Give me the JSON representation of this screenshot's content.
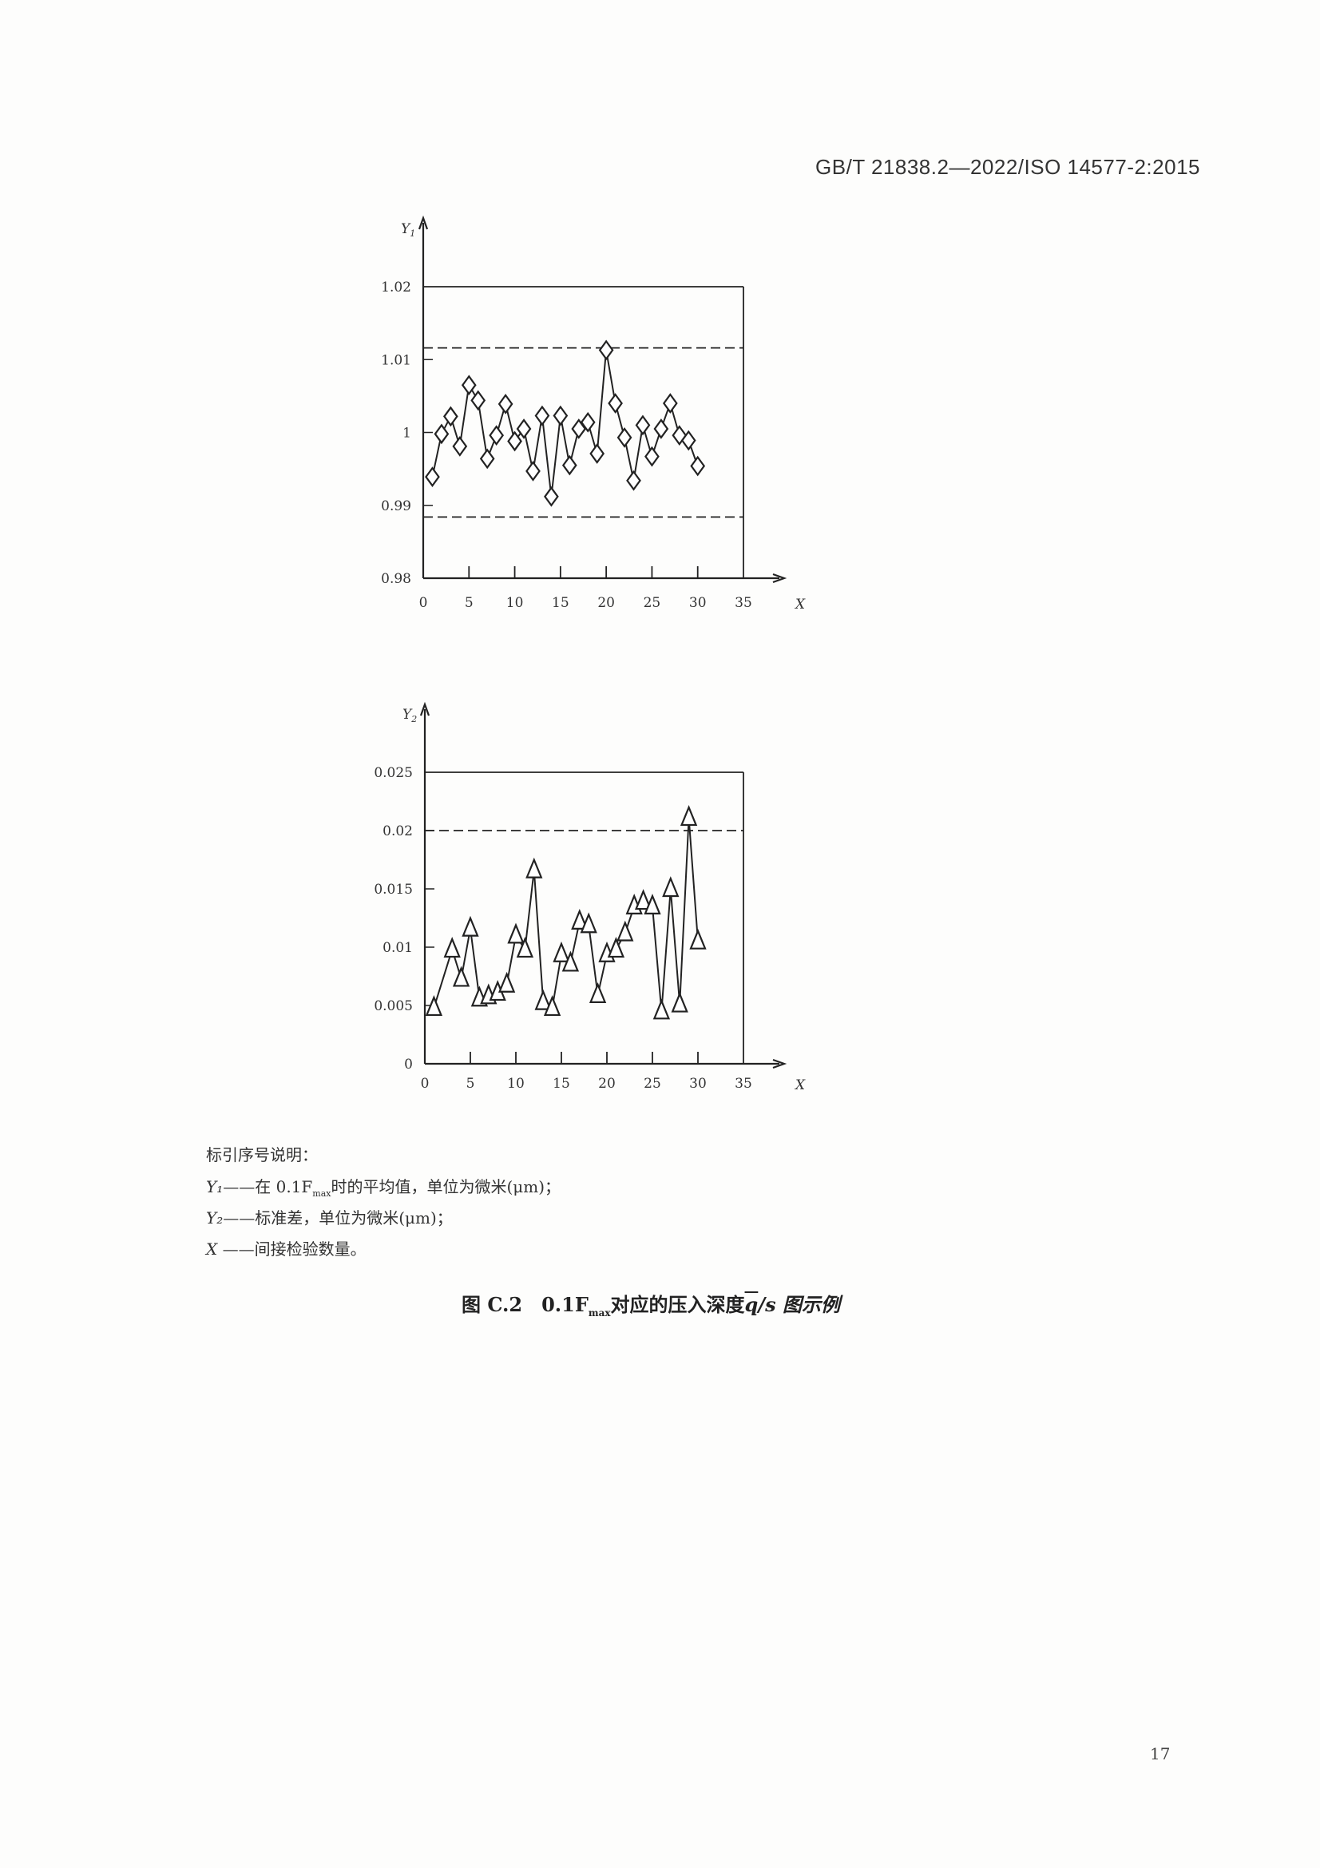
{
  "header": {
    "standard_id": "GB/T 21838.2—2022/ISO 14577-2:2015"
  },
  "chart_data": [
    {
      "type": "line",
      "ylabel": "Y1",
      "xlabel": "X",
      "xlim": [
        0,
        35
      ],
      "ylim": [
        0.98,
        1.02
      ],
      "xticks": [
        "0",
        "5",
        "10",
        "15",
        "20",
        "25",
        "30",
        "35"
      ],
      "yticks": [
        "0.98",
        "0.99",
        "1",
        "1.01",
        "1.02"
      ],
      "marker": "diamond",
      "reference_lines": [
        {
          "y": 1.02,
          "style": "solid"
        },
        {
          "y": 1.0116,
          "style": "dashed"
        },
        {
          "y": 0.9884,
          "style": "dashed"
        }
      ],
      "x": [
        1,
        2,
        3,
        4,
        5,
        6,
        7,
        8,
        9,
        10,
        11,
        12,
        13,
        14,
        15,
        16,
        17,
        18,
        19,
        20,
        21,
        22,
        23,
        24,
        25,
        26,
        27,
        28,
        29,
        30
      ],
      "values": [
        0.9939,
        0.9998,
        1.0022,
        0.9981,
        1.0065,
        1.0044,
        0.9964,
        0.9996,
        1.0039,
        0.9988,
        1.0005,
        0.9947,
        1.0023,
        0.9912,
        1.0023,
        0.9955,
        1.0005,
        1.0014,
        0.9971,
        1.0113,
        1.004,
        0.9993,
        0.9934,
        1.001,
        0.9967,
        1.0005,
        1.004,
        0.9996,
        0.9989,
        0.9954
      ]
    },
    {
      "type": "line",
      "ylabel": "Y2",
      "xlabel": "X",
      "xlim": [
        0,
        35
      ],
      "ylim": [
        0,
        0.025
      ],
      "xticks": [
        "0",
        "5",
        "10",
        "15",
        "20",
        "25",
        "30",
        "35"
      ],
      "yticks": [
        "0",
        "0.005",
        "0.01",
        "0.015",
        "0.02",
        "0.025"
      ],
      "marker": "triangle",
      "reference_lines": [
        {
          "y": 0.025,
          "style": "solid"
        },
        {
          "y": 0.02,
          "style": "dashed"
        }
      ],
      "x": [
        1,
        3,
        4,
        5,
        6,
        7,
        8,
        9,
        10,
        11,
        12,
        13,
        14,
        15,
        16,
        17,
        18,
        19,
        20,
        21,
        22,
        23,
        24,
        25,
        26,
        27,
        28,
        29,
        30
      ],
      "values": [
        0.0048,
        0.0098,
        0.0073,
        0.0116,
        0.0056,
        0.0058,
        0.0061,
        0.0068,
        0.011,
        0.0098,
        0.0166,
        0.0053,
        0.0048,
        0.0094,
        0.0086,
        0.0122,
        0.0119,
        0.0059,
        0.0094,
        0.0098,
        0.0112,
        0.0135,
        0.0139,
        0.0135,
        0.0045,
        0.015,
        0.0051,
        0.0211,
        0.0105
      ]
    }
  ],
  "legend": {
    "title": "标引序号说明：",
    "items": [
      {
        "key": "Y₁",
        "text": "——在 0.1F",
        "sub": "max",
        "rest": "时的平均值，单位为微米(μm)；"
      },
      {
        "key": "Y₂",
        "text": "——标准差，单位为微米(μm)；"
      },
      {
        "key": "X",
        "text": " ——间接检验数量。"
      }
    ]
  },
  "caption": {
    "prefix": "图 C.2　0.1F",
    "sub": "max",
    "middle": "对应的压入深度",
    "qbar": "q",
    "suffix": "/s 图示例"
  },
  "page_number": "17"
}
